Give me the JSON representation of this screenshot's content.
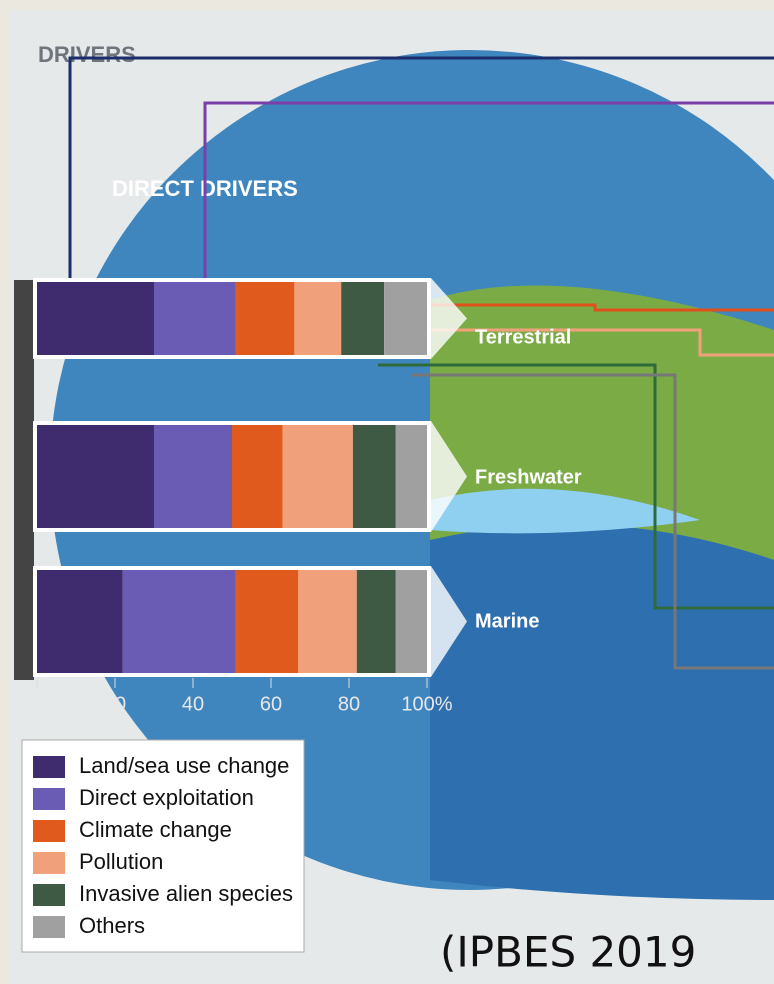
{
  "chart_data": {
    "type": "stacked-bar-horizontal",
    "title": "DRIVERS",
    "subtitle": "DIRECT DRIVERS",
    "categories": [
      "Terrestrial",
      "Freshwater",
      "Marine"
    ],
    "series": [
      {
        "name": "Land/sea use change",
        "color": "#3f2c6e",
        "values": [
          30,
          30,
          22
        ]
      },
      {
        "name": "Direct exploitation",
        "color": "#6a5bb5",
        "values": [
          21,
          20,
          29
        ]
      },
      {
        "name": "Climate change",
        "color": "#e05a1e",
        "values": [
          15,
          13,
          16
        ]
      },
      {
        "name": "Pollution",
        "color": "#f0a07a",
        "values": [
          12,
          18,
          15
        ]
      },
      {
        "name": "Invasive alien species",
        "color": "#3e5a45",
        "values": [
          11,
          11,
          10
        ]
      },
      {
        "name": "Others",
        "color": "#a0a0a0",
        "values": [
          11,
          8,
          8
        ]
      }
    ],
    "xlim": [
      0,
      100
    ],
    "xticks": [
      0,
      20,
      40,
      60,
      80,
      {
        "value": 100,
        "label": "100%"
      }
    ],
    "source": "(IPBES 2019"
  }
}
